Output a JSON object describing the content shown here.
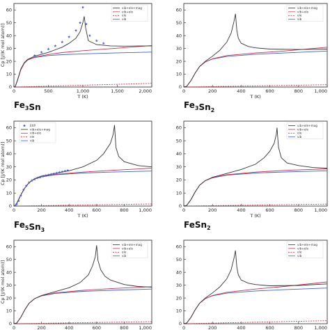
{
  "chart_data": [
    {
      "type": "line",
      "title": "",
      "xlabel": "T (K)",
      "ylabel": "Cp [J/(K mol atom)]",
      "xlim": [
        0,
        2000
      ],
      "ylim": [
        0,
        65
      ],
      "xticks": [
        "0",
        "500",
        "1,000",
        "1,500",
        "2,000"
      ],
      "xtick_values": [
        0,
        500,
        1000,
        1500,
        2000
      ],
      "yticks": [
        "0",
        "10",
        "20",
        "30",
        "40",
        "50",
        "60"
      ],
      "ytick_values": [
        0,
        10,
        20,
        30,
        40,
        50,
        60
      ],
      "legend": [
        "vib+ele+mag",
        "vib+ele",
        "ele",
        "vib"
      ],
      "legend_position": "top-right",
      "series": [
        {
          "name": "vib+ele+mag",
          "color": "#333333",
          "x": [
            0,
            20,
            50,
            100,
            150,
            200,
            300,
            400,
            500,
            600,
            700,
            800,
            900,
            960,
            1000,
            1020,
            1040,
            1080,
            1200,
            1400,
            1600,
            1800,
            2000
          ],
          "y": [
            0,
            0.5,
            5,
            14,
            19,
            21.5,
            24,
            25.5,
            27,
            29,
            31,
            34,
            38,
            43,
            50,
            55,
            46,
            36,
            33,
            32,
            31.8,
            31.9,
            32
          ]
        },
        {
          "name": "vib+ele",
          "color": "#c8324b",
          "x": [
            0,
            20,
            50,
            100,
            150,
            200,
            300,
            500,
            700,
            1000,
            1500,
            2000
          ],
          "y": [
            0,
            0.5,
            5,
            13.5,
            18.5,
            21,
            23.3,
            25.3,
            26.8,
            28.3,
            30.2,
            32.3
          ]
        },
        {
          "name": "ele",
          "color": "#c8324b",
          "x": [
            0,
            2000
          ],
          "y": [
            0,
            2.8
          ]
        },
        {
          "name": "vib",
          "color": "#3f5fc8",
          "x": [
            0,
            20,
            50,
            100,
            150,
            200,
            300,
            500,
            700,
            1000,
            1500,
            2000
          ],
          "y": [
            0,
            0.5,
            5,
            13.5,
            18.5,
            21,
            23,
            24.5,
            25.2,
            25.8,
            26.6,
            27.2
          ]
        }
      ],
      "points": {
        "name": "Exp",
        "color": "#4a5bd0",
        "x": [
          300,
          400,
          500,
          600,
          700,
          800,
          900,
          960,
          1000,
          1050,
          1100,
          1200,
          1300
        ],
        "y": [
          24.5,
          27,
          29.5,
          32,
          35,
          39,
          44,
          50,
          62,
          49,
          40,
          36,
          34
        ]
      }
    },
    {
      "type": "line",
      "title": "Fe3Sn",
      "xlabel": "T (K)",
      "ylabel": "",
      "xlim": [
        0,
        1000
      ],
      "ylim": [
        0,
        65
      ],
      "xticks": [
        "0",
        "200",
        "400",
        "600",
        "800",
        "1,000"
      ],
      "xtick_values": [
        0,
        200,
        400,
        600,
        800,
        1000
      ],
      "yticks": [
        "0",
        "10",
        "20",
        "30",
        "40",
        "50",
        "60"
      ],
      "ytick_values": [
        0,
        10,
        20,
        30,
        40,
        50,
        60
      ],
      "legend": [
        "vib+ele+mag",
        "vib+ele",
        "ele",
        "vib"
      ],
      "legend_position": "top-right",
      "series": [
        {
          "name": "vib+ele+mag",
          "color": "#333333",
          "x": [
            0,
            20,
            50,
            80,
            110,
            150,
            200,
            250,
            300,
            330,
            350,
            360,
            370,
            380,
            400,
            450,
            500,
            600,
            800,
            1000
          ],
          "y": [
            0,
            0.5,
            5,
            11,
            16,
            20,
            24,
            28.5,
            35,
            42,
            51,
            57,
            44,
            38,
            34,
            31.5,
            30.5,
            29.5,
            29.2,
            29.5
          ]
        },
        {
          "name": "vib+ele",
          "color": "#c8324b",
          "x": [
            0,
            20,
            50,
            80,
            110,
            150,
            200,
            300,
            500,
            700,
            1000
          ],
          "y": [
            0,
            0.5,
            5,
            11,
            16,
            19.5,
            22,
            24.5,
            26.5,
            28,
            31
          ]
        },
        {
          "name": "ele",
          "color": "#c8324b",
          "x": [
            0,
            1000
          ],
          "y": [
            0,
            1.8
          ]
        },
        {
          "name": "vib",
          "color": "#3f5fc8",
          "x": [
            0,
            20,
            50,
            80,
            110,
            150,
            200,
            300,
            500,
            700,
            1000
          ],
          "y": [
            0,
            0.5,
            5,
            11,
            16,
            19.5,
            21.8,
            23.8,
            25.5,
            26.5,
            28
          ]
        }
      ]
    },
    {
      "type": "line",
      "title": "Fe3Sn2",
      "xlabel": "T (K)",
      "ylabel": "Cp [J/(K mol atom)]",
      "xlim": [
        0,
        1000
      ],
      "ylim": [
        0,
        65
      ],
      "xticks": [
        "0",
        "200",
        "400",
        "600",
        "800",
        "1,000"
      ],
      "xtick_values": [
        0,
        200,
        400,
        600,
        800,
        1000
      ],
      "yticks": [
        "0",
        "10",
        "20",
        "30",
        "40",
        "50",
        "60"
      ],
      "ytick_values": [
        0,
        10,
        20,
        30,
        40,
        50,
        60
      ],
      "legend": [
        "EXP",
        "vib+ele+mag",
        "vib+ele",
        "ele",
        "vib"
      ],
      "legend_position": "top-left",
      "series": [
        {
          "name": "vib+ele+mag",
          "color": "#333333",
          "x": [
            0,
            10,
            25,
            50,
            80,
            110,
            150,
            200,
            300,
            400,
            500,
            600,
            650,
            700,
            720,
            730,
            740,
            760,
            800,
            900,
            1000
          ],
          "y": [
            0,
            0.3,
            3,
            8.5,
            14,
            18,
            21,
            23,
            25,
            27,
            30,
            35,
            40,
            48,
            55,
            62,
            45,
            38,
            34,
            31,
            30
          ]
        },
        {
          "name": "vib+ele",
          "color": "#c8324b",
          "x": [
            0,
            10,
            25,
            50,
            80,
            110,
            150,
            200,
            300,
            500,
            700,
            1000
          ],
          "y": [
            0,
            0.3,
            3,
            8.5,
            14,
            18,
            20.8,
            22.5,
            24.3,
            26,
            27.3,
            29
          ]
        },
        {
          "name": "ele",
          "color": "#c8324b",
          "x": [
            0,
            1000
          ],
          "y": [
            0,
            1.6
          ]
        },
        {
          "name": "vib",
          "color": "#3f5fc8",
          "x": [
            0,
            10,
            25,
            50,
            80,
            110,
            150,
            200,
            300,
            500,
            700,
            1000
          ],
          "y": [
            0,
            0.3,
            3,
            8.5,
            14,
            18,
            20.8,
            22.4,
            24,
            25.3,
            26,
            26.8
          ]
        }
      ],
      "points": {
        "name": "EXP",
        "color": "#4a5bd0",
        "x": [
          10,
          20,
          35,
          50,
          70,
          90,
          110,
          130,
          150,
          170,
          190,
          210,
          230,
          250,
          270,
          290,
          310,
          330,
          350,
          370,
          390
        ],
        "y": [
          0.3,
          1.5,
          4,
          8,
          12.5,
          15.5,
          18,
          19.5,
          20.5,
          21.5,
          22,
          22.8,
          23.3,
          23.8,
          24.3,
          24.8,
          25.3,
          25.8,
          26.3,
          26.8,
          27.3
        ]
      }
    },
    {
      "type": "line",
      "title": "Fe5Sn3",
      "xlabel": "T (K)",
      "ylabel": "",
      "xlim": [
        0,
        1000
      ],
      "ylim": [
        0,
        65
      ],
      "xticks": [
        "0",
        "200",
        "400",
        "600",
        "800",
        "1,000"
      ],
      "xtick_values": [
        0,
        200,
        400,
        600,
        800,
        1000
      ],
      "yticks": [
        "0",
        "10",
        "20",
        "30",
        "40",
        "50",
        "60"
      ],
      "ytick_values": [
        0,
        10,
        20,
        30,
        40,
        50,
        60
      ],
      "legend": [
        "vib+ele+mag",
        "vib+ele",
        "ele",
        "vib"
      ],
      "legend_position": "top-right",
      "series": [
        {
          "name": "vib+ele+mag",
          "color": "#333333",
          "x": [
            0,
            20,
            50,
            80,
            110,
            150,
            200,
            300,
            400,
            500,
            560,
            600,
            630,
            645,
            650,
            660,
            680,
            720,
            800,
            900,
            1000
          ],
          "y": [
            0,
            0.5,
            5,
            11,
            16,
            19.5,
            22,
            25,
            28,
            32,
            37,
            42,
            48,
            55,
            60,
            45,
            37,
            33,
            31,
            29.5,
            29
          ]
        },
        {
          "name": "vib+ele",
          "color": "#c8324b",
          "x": [
            0,
            20,
            50,
            80,
            110,
            150,
            200,
            300,
            500,
            700,
            1000
          ],
          "y": [
            0,
            0.5,
            5,
            11,
            16,
            19.5,
            21.8,
            24,
            26,
            27.3,
            28.5
          ]
        },
        {
          "name": "ele",
          "color": "#c8324b",
          "x": [
            0,
            1000
          ],
          "y": [
            0,
            1.5
          ]
        },
        {
          "name": "vib",
          "color": "#3f5fc8",
          "x": [
            0,
            20,
            50,
            80,
            110,
            150,
            200,
            300,
            500,
            700,
            1000
          ],
          "y": [
            0,
            0.5,
            5,
            11,
            16,
            19.5,
            21.6,
            23.7,
            25.3,
            26.1,
            27
          ]
        }
      ]
    },
    {
      "type": "line",
      "title": "",
      "xlabel": "",
      "ylabel": "Cp [J/(K mol atom)]",
      "xlim": [
        0,
        1000
      ],
      "ylim": [
        0,
        65
      ],
      "xticks": [
        "0",
        "200",
        "400",
        "600",
        "800",
        "1,000"
      ],
      "xtick_values": [
        0,
        200,
        400,
        600,
        800,
        1000
      ],
      "yticks": [
        "0",
        "10",
        "20",
        "30",
        "40",
        "50",
        "60"
      ],
      "ytick_values": [
        0,
        10,
        20,
        30,
        40,
        50,
        60
      ],
      "legend": [
        "vib+ele+mag",
        "vib+ele",
        "ele",
        "vib"
      ],
      "legend_position": "top-right",
      "series": [
        {
          "name": "vib+ele+mag",
          "color": "#333333",
          "x": [
            0,
            20,
            50,
            80,
            110,
            150,
            200,
            300,
            400,
            480,
            540,
            570,
            590,
            600,
            610,
            630,
            660,
            700,
            800,
            900,
            1000
          ],
          "y": [
            0,
            0.5,
            5,
            11,
            16,
            19.5,
            22,
            25,
            28,
            32,
            38,
            45,
            52,
            61,
            49,
            42,
            37,
            34,
            30.5,
            29,
            28.5
          ]
        },
        {
          "name": "vib+ele",
          "color": "#c8324b",
          "x": [
            0,
            20,
            50,
            80,
            110,
            150,
            200,
            300,
            500,
            700,
            1000
          ],
          "y": [
            0,
            0.5,
            5,
            11,
            16,
            19.5,
            21.8,
            24,
            26,
            27.3,
            28.8
          ]
        },
        {
          "name": "ele",
          "color": "#c8324b",
          "x": [
            0,
            1000
          ],
          "y": [
            0,
            1.6
          ]
        },
        {
          "name": "vib",
          "color": "#3f5fc8",
          "x": [
            0,
            20,
            50,
            80,
            110,
            150,
            200,
            300,
            500,
            700,
            1000
          ],
          "y": [
            0,
            0.5,
            5,
            11,
            16,
            19.5,
            21.6,
            23.6,
            25.2,
            26,
            27
          ]
        }
      ]
    },
    {
      "type": "line",
      "title": "FeSn2",
      "xlabel": "",
      "ylabel": "",
      "xlim": [
        0,
        1000
      ],
      "ylim": [
        0,
        65
      ],
      "xticks": [
        "0",
        "200",
        "400",
        "600",
        "800",
        "1,000"
      ],
      "xtick_values": [
        0,
        200,
        400,
        600,
        800,
        1000
      ],
      "yticks": [
        "0",
        "10",
        "20",
        "30",
        "40",
        "50",
        "60"
      ],
      "ytick_values": [
        0,
        10,
        20,
        30,
        40,
        50,
        60
      ],
      "legend": [
        "vib+ele+mag",
        "vib+ele",
        "ele",
        "vib"
      ],
      "legend_position": "top-right",
      "series": [
        {
          "name": "vib+ele+mag",
          "color": "#333333",
          "x": [
            0,
            20,
            50,
            80,
            110,
            150,
            200,
            250,
            300,
            330,
            350,
            360,
            370,
            380,
            400,
            450,
            500,
            600,
            800,
            1000
          ],
          "y": [
            0,
            0.5,
            5,
            11,
            16,
            20,
            24,
            28.5,
            35,
            42,
            51,
            57,
            44,
            38,
            34,
            31.5,
            30.5,
            29.5,
            29.8,
            31
          ]
        },
        {
          "name": "vib+ele",
          "color": "#c8324b",
          "x": [
            0,
            20,
            50,
            80,
            110,
            150,
            200,
            300,
            500,
            700,
            1000
          ],
          "y": [
            0,
            0.5,
            5,
            11,
            16,
            19.5,
            22,
            24.5,
            27,
            29,
            32.5
          ]
        },
        {
          "name": "ele",
          "color": "#c8324b",
          "x": [
            0,
            1000
          ],
          "y": [
            0,
            2.4
          ]
        },
        {
          "name": "vib",
          "color": "#3f5fc8",
          "x": [
            0,
            20,
            50,
            80,
            110,
            150,
            200,
            300,
            500,
            700,
            1000
          ],
          "y": [
            0,
            0.5,
            5,
            11,
            16,
            19.5,
            21.8,
            23.8,
            25.5,
            26.5,
            27.8
          ]
        }
      ]
    }
  ]
}
